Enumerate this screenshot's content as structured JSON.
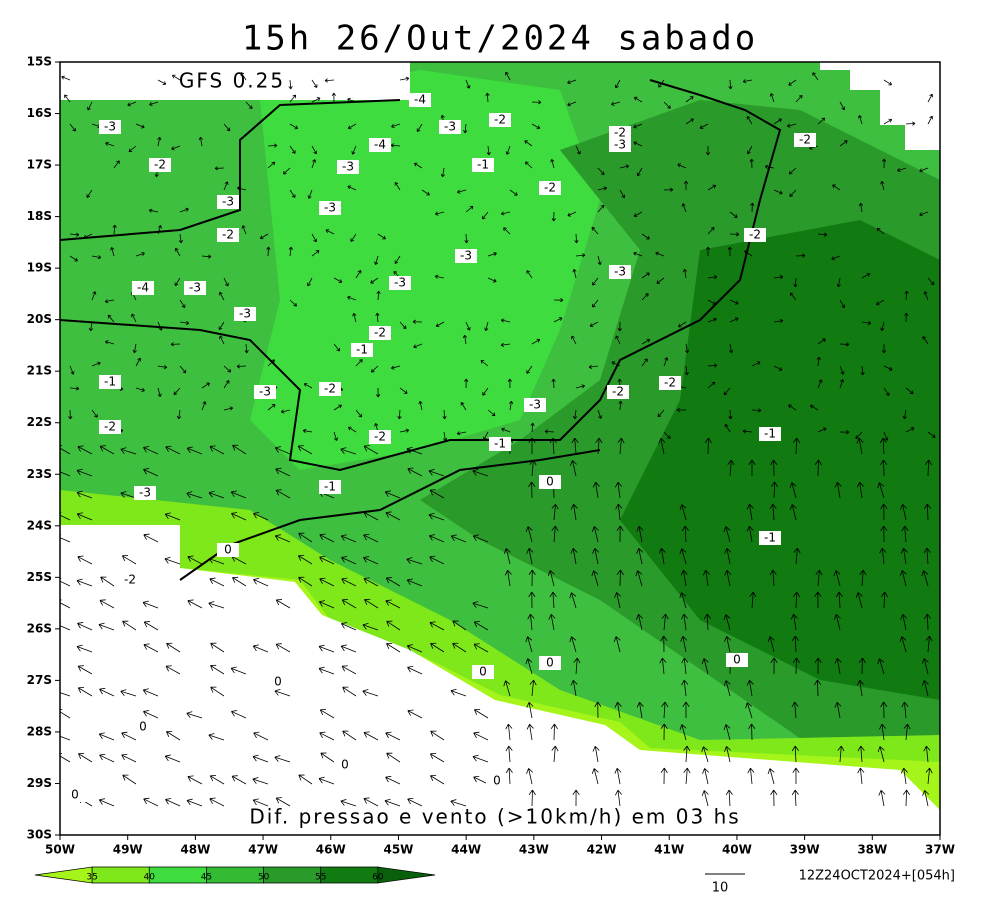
{
  "header": {
    "title": "15h 26/Out/2024 sabado",
    "model": "GFS 0.25"
  },
  "axes": {
    "latitudes": [
      "15S",
      "16S",
      "17S",
      "18S",
      "19S",
      "20S",
      "21S",
      "22S",
      "23S",
      "24S",
      "25S",
      "26S",
      "27S",
      "28S",
      "29S",
      "30S"
    ],
    "longitudes": [
      "50W",
      "49W",
      "48W",
      "47W",
      "46W",
      "45W",
      "44W",
      "43W",
      "42W",
      "41W",
      "40W",
      "39W",
      "38W",
      "37W"
    ]
  },
  "footer": {
    "caption": "Dif. pressao e vento (>10km/h) em 03 hs",
    "vector_ref": "10",
    "run_info": "12Z24OCT2024+[054h]"
  },
  "colorbar": {
    "levels": [
      35,
      40,
      45,
      50,
      55,
      60
    ],
    "colors": [
      "#a6f51a",
      "#7ee81a",
      "#3fdc3f",
      "#33bb33",
      "#2a9a2a",
      "#117a11",
      "#0a5f0a"
    ]
  },
  "contour_labels": [
    "-3",
    "-2",
    "-4",
    "-3",
    "-2",
    "-2",
    "-3",
    "-1",
    "-3",
    "-4",
    "-2",
    "-3",
    "-3",
    "-2",
    "-2",
    "-2",
    "-3",
    "-3",
    "-3",
    "-4",
    "-3",
    "-3",
    "-2",
    "-1",
    "-1",
    "-3",
    "-2",
    "-2",
    "-2",
    "-3",
    "-2",
    "-2",
    "-1",
    "-1",
    "0",
    "-1",
    "-3",
    "-1",
    "0",
    "-2",
    "0",
    "0",
    "0",
    "0",
    "0",
    "0",
    "0",
    "0"
  ]
}
